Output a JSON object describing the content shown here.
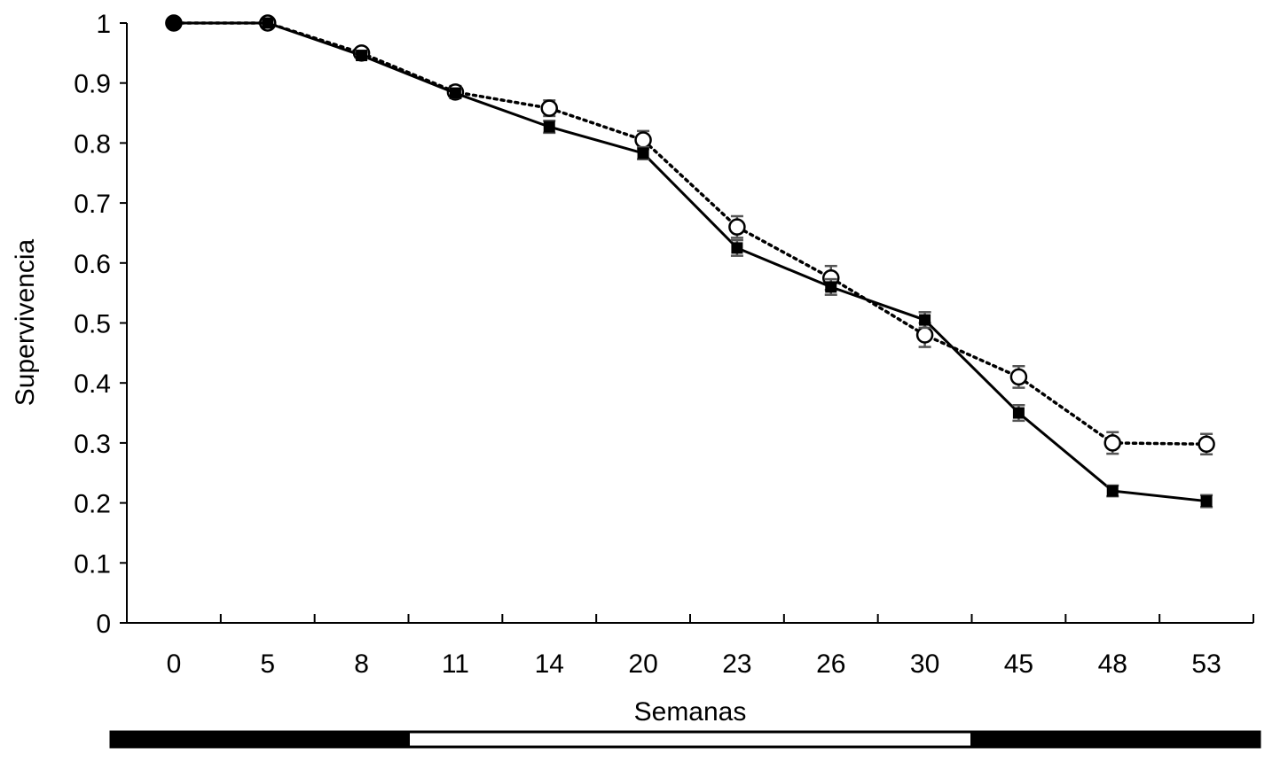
{
  "chart_data": {
    "type": "line",
    "title": "",
    "xlabel": "Semanas",
    "ylabel": "Supervivencia",
    "categories": [
      "0",
      "5",
      "8",
      "11",
      "14",
      "20",
      "23",
      "26",
      "30",
      "45",
      "48",
      "53"
    ],
    "yticks": [
      "0",
      "0.1",
      "0.2",
      "0.3",
      "0.4",
      "0.5",
      "0.6",
      "0.7",
      "0.8",
      "0.9",
      "1"
    ],
    "ylim": [
      0,
      1
    ],
    "grid": false,
    "legend": "none",
    "series": [
      {
        "marker": "filled-square",
        "line_style": "solid",
        "color": "#000000",
        "values": [
          1.0,
          1.0,
          0.946,
          0.883,
          0.827,
          0.783,
          0.625,
          0.56,
          0.505,
          0.35,
          0.22,
          0.203
        ],
        "error": [
          0.0,
          0.0,
          0.005,
          0.008,
          0.01,
          0.01,
          0.013,
          0.013,
          0.013,
          0.013,
          0.009,
          0.01
        ]
      },
      {
        "marker": "open-circle",
        "line_style": "dotted",
        "color": "#000000",
        "values": [
          1.0,
          1.0,
          0.95,
          0.885,
          0.858,
          0.805,
          0.66,
          0.575,
          0.48,
          0.41,
          0.3,
          0.298
        ],
        "error": [
          0.0,
          0.0,
          0.005,
          0.01,
          0.013,
          0.015,
          0.018,
          0.02,
          0.02,
          0.018,
          0.018,
          0.017
        ]
      }
    ],
    "period_bar": [
      {
        "from": "0",
        "to": "8",
        "fill": "#000000"
      },
      {
        "from": "8",
        "to": "30",
        "fill": "#ffffff"
      },
      {
        "from": "30",
        "to": "53",
        "fill": "#000000"
      }
    ]
  }
}
